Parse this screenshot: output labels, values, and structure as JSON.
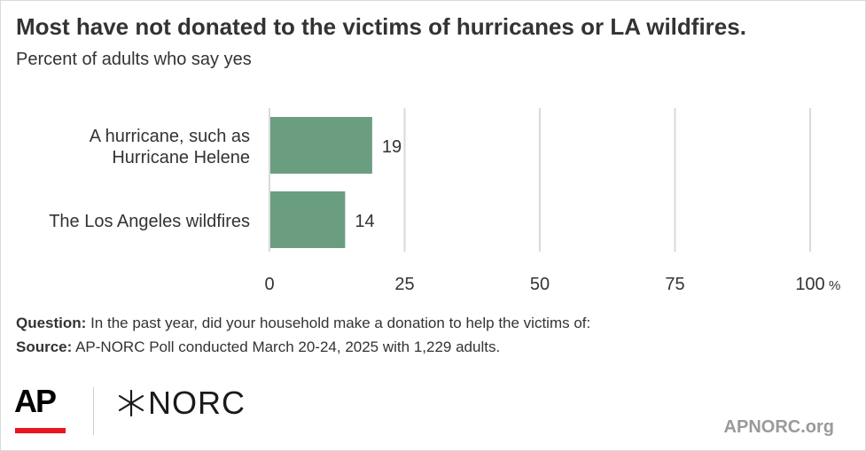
{
  "header": {
    "title": "Most have not donated to the victims of hurricanes or LA wildfires.",
    "subtitle": "Percent of adults who say yes"
  },
  "chart_data": {
    "type": "bar",
    "orientation": "horizontal",
    "categories": [
      [
        "A hurricane, such as",
        "Hurricane Helene"
      ],
      [
        "The Los Angeles wildfires"
      ]
    ],
    "values": [
      19,
      14
    ],
    "data_labels": [
      "19",
      "14"
    ],
    "xlim": [
      0,
      100
    ],
    "ticks": [
      0,
      25,
      50,
      75,
      100
    ],
    "tick_labels": [
      "0",
      "25",
      "50",
      "75",
      "100"
    ],
    "last_tick_suffix": "%",
    "grid": true,
    "bar_color": "#6b9e80",
    "grid_color": "#d9d9d9"
  },
  "notes": {
    "question_label": "Question:",
    "question_text": " In the past year, did your household make a donation to help the victims of:",
    "source_label": "Source:",
    "source_text": " AP-NORC Poll conducted March 20-24, 2025 with 1,229 adults."
  },
  "footer": {
    "ap_logo": "AP",
    "norc_logo": "NORC",
    "url": "APNORC.org",
    "accent_color": "#e8151f"
  }
}
